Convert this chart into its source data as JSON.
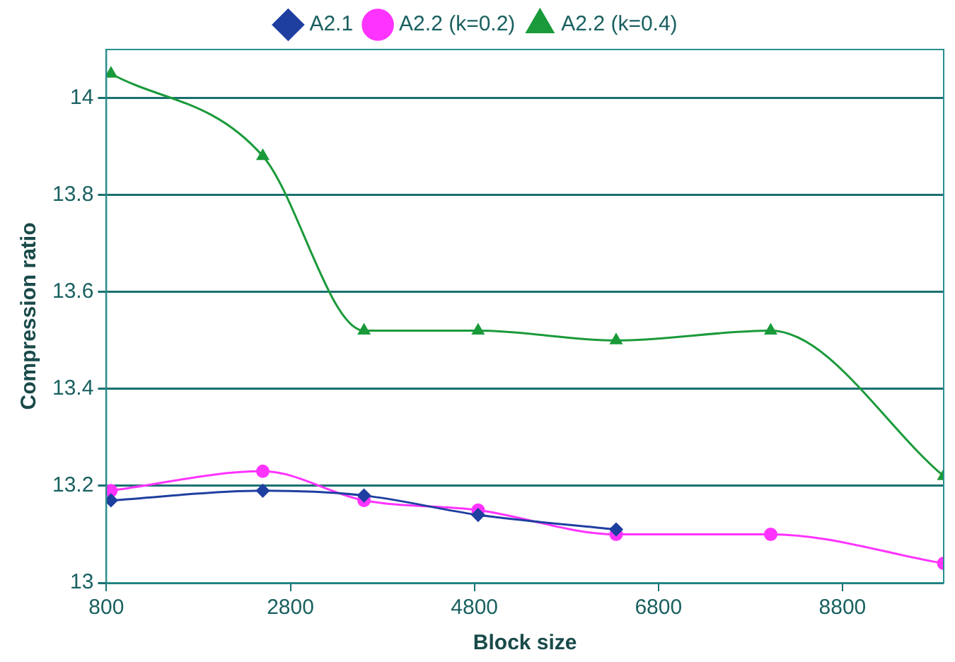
{
  "chart_data": {
    "type": "line",
    "xlabel": "Block size",
    "ylabel": "Compression ratio",
    "x": [
      850,
      2500,
      3600,
      4840,
      6340,
      8020,
      9900
    ],
    "xlim": [
      800,
      9900
    ],
    "xticks": [
      800,
      2800,
      4800,
      6800,
      8800
    ],
    "ylim": [
      13,
      14.1
    ],
    "yticks": [
      13,
      13.2,
      13.4,
      13.6,
      13.8,
      14
    ],
    "grid": "y",
    "legend": "top",
    "line_style": "solid",
    "series": [
      {
        "name": "A2.1",
        "color": "#1f3fa0",
        "marker": "diamond",
        "x": [
          850,
          2500,
          3600,
          4840,
          6340
        ],
        "values": [
          13.17,
          13.19,
          13.18,
          13.14,
          13.11
        ]
      },
      {
        "name": "A2.2 (k=0.2)",
        "color": "#ff33ff",
        "marker": "circle",
        "values": [
          13.19,
          13.23,
          13.17,
          13.15,
          13.1,
          13.1,
          13.04
        ]
      },
      {
        "name": "A2.2 (k=0.4)",
        "color": "#1a9a3a",
        "marker": "triangle",
        "values": [
          14.05,
          13.88,
          13.52,
          13.52,
          13.5,
          13.52,
          13.22
        ]
      }
    ]
  }
}
